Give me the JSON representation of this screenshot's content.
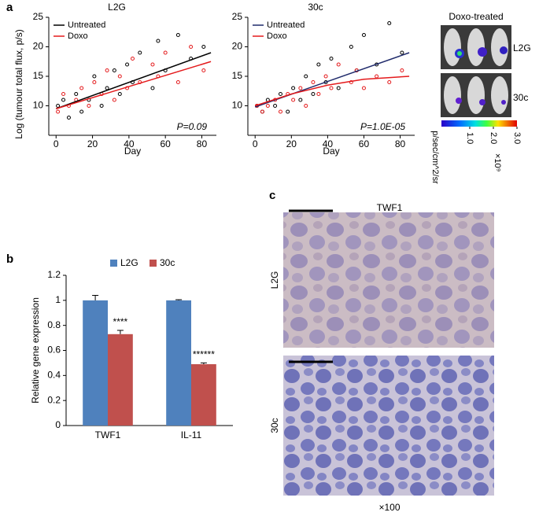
{
  "chart_data": [
    {
      "type": "scatter",
      "panel_label": "a",
      "title": "L2G",
      "x_label": "Day",
      "y_label": "Log (tumour total flux, p/s)",
      "xlim": [
        -4,
        88
      ],
      "ylim": [
        5,
        25
      ],
      "xticks": [
        0,
        20,
        40,
        60,
        80
      ],
      "yticks": [
        10,
        15,
        20,
        25
      ],
      "legend": "upper left",
      "series": [
        {
          "name": "Untreated",
          "color": "#000000",
          "x": [
            1,
            4,
            7,
            11,
            14,
            18,
            21,
            25,
            28,
            32,
            35,
            39,
            42,
            46,
            53,
            56,
            60,
            67,
            74,
            81
          ],
          "values": [
            10,
            11,
            8,
            12,
            9,
            11,
            15,
            10,
            13,
            16,
            12,
            17,
            14,
            19,
            13,
            21,
            16,
            22,
            18,
            20
          ]
        },
        {
          "name": "Doxo",
          "color": "#e41a1c",
          "x": [
            1,
            4,
            7,
            11,
            14,
            18,
            21,
            25,
            28,
            32,
            35,
            39,
            42,
            46,
            53,
            56,
            60,
            67,
            74,
            81
          ],
          "values": [
            9,
            12,
            10,
            11,
            13,
            10,
            14,
            12,
            16,
            11,
            15,
            13,
            18,
            14,
            17,
            15,
            19,
            14,
            20,
            16
          ]
        }
      ],
      "fits": [
        {
          "color": "#000000",
          "x": [
            0,
            85
          ],
          "values": [
            9.5,
            19
          ]
        },
        {
          "color": "#e41a1c",
          "x": [
            0,
            85
          ],
          "values": [
            9.5,
            17.5
          ]
        }
      ],
      "annotation": "P=0.09"
    },
    {
      "type": "scatter",
      "title": "30c",
      "x_label": "Day",
      "xlim": [
        -4,
        88
      ],
      "ylim": [
        5,
        25
      ],
      "xticks": [
        0,
        20,
        40,
        60,
        80
      ],
      "yticks": [
        10,
        15,
        20,
        25
      ],
      "legend": "upper left",
      "series": [
        {
          "name": "Untreated",
          "color": "#000000",
          "x": [
            1,
            4,
            7,
            11,
            14,
            18,
            21,
            25,
            28,
            32,
            35,
            39,
            42,
            46,
            53,
            56,
            60,
            67,
            74,
            81
          ],
          "values": [
            10,
            9,
            11,
            10,
            12,
            9,
            13,
            11,
            15,
            12,
            17,
            14,
            18,
            13,
            20,
            16,
            22,
            17,
            24,
            19
          ]
        },
        {
          "name": "Doxo",
          "color": "#e41a1c",
          "x": [
            1,
            4,
            7,
            11,
            14,
            18,
            21,
            25,
            28,
            32,
            35,
            39,
            42,
            46,
            53,
            56,
            60,
            67,
            74,
            81
          ],
          "values": [
            10,
            9,
            10,
            11,
            9,
            12,
            11,
            13,
            10,
            14,
            12,
            15,
            13,
            17,
            14,
            16,
            13,
            15,
            14,
            16
          ]
        }
      ],
      "fits": [
        {
          "color": "#1f2a6b",
          "x": [
            0,
            85
          ],
          "values": [
            9.8,
            19
          ]
        },
        {
          "color": "#e41a1c",
          "x": [
            0,
            20,
            40,
            60,
            85
          ],
          "values": [
            10,
            12,
            13.5,
            14.5,
            15
          ]
        }
      ],
      "annotation": "P=1.0E-05"
    },
    {
      "type": "bar",
      "panel_label": "b",
      "y_label": "Relative gene expression",
      "categories": [
        "TWF1",
        "IL-11"
      ],
      "ylim": [
        0,
        1.2
      ],
      "yticks": [
        0,
        0.2,
        0.4,
        0.6,
        0.8,
        1,
        1.2
      ],
      "legend": "upper center",
      "series": [
        {
          "name": "L2G",
          "color": "#4f81bd",
          "values": [
            1.0,
            1.0
          ],
          "errors": [
            0.04,
            0.005
          ]
        },
        {
          "name": "30c",
          "color": "#c0504d",
          "values": [
            0.73,
            0.49
          ],
          "errors": [
            0.03,
            0.01
          ],
          "annotations": [
            "****",
            "******"
          ]
        }
      ]
    }
  ],
  "imaging": {
    "title": "Doxo-treated",
    "rows": [
      "L2G",
      "30c"
    ],
    "colorbar_lim": [
      -0.2,
      3.0
    ],
    "colorbar_ticks": [
      {
        "value": 1,
        "label": "1.0"
      },
      {
        "value": 2,
        "label": "2.0"
      },
      {
        "value": 3,
        "label": "3.0"
      }
    ],
    "colorbar_scale": "×10⁹",
    "colorbar_unit": "p/sec/cm^2/sr"
  },
  "histology": {
    "panel_label": "c",
    "title": "TWF1",
    "rows": [
      "L2G",
      "30c"
    ],
    "magnification": "×100"
  }
}
